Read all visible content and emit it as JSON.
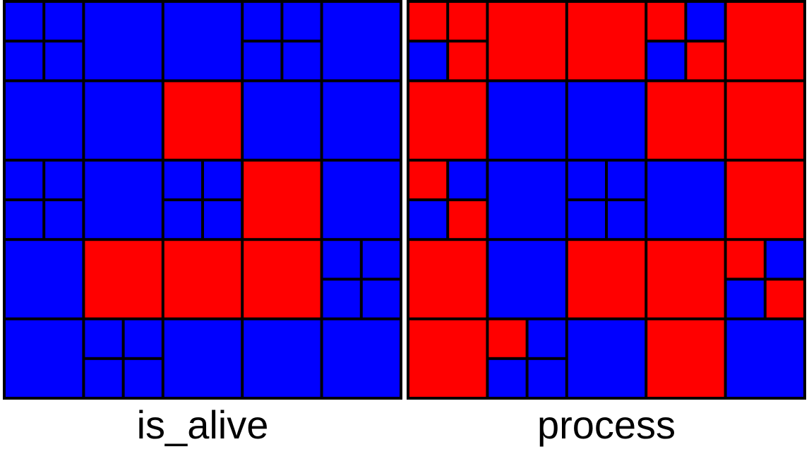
{
  "colors": {
    "red": "#ff0000",
    "blue": "#0000ff",
    "border": "#000000"
  },
  "panels": [
    {
      "label": "is_alive",
      "grid": [
        [
          [
            "B",
            "B",
            "B",
            "B"
          ],
          "B",
          "B",
          [
            "B",
            "B",
            "B",
            "B"
          ],
          "B"
        ],
        [
          "B",
          "B",
          "R",
          "B",
          "B"
        ],
        [
          [
            "B",
            "B",
            "B",
            "B"
          ],
          "B",
          [
            "B",
            "B",
            "B",
            "B"
          ],
          "R",
          "B"
        ],
        [
          "B",
          "R",
          "R",
          "R",
          [
            "B",
            "B",
            "B",
            "B"
          ]
        ],
        [
          "B",
          [
            "B",
            "B",
            "B",
            "B"
          ],
          "B",
          "B",
          "B"
        ]
      ]
    },
    {
      "label": "process",
      "grid": [
        [
          [
            "R",
            "R",
            "B",
            "R"
          ],
          "R",
          "R",
          [
            "R",
            "B",
            "B",
            "R"
          ],
          "R"
        ],
        [
          "R",
          "B",
          "B",
          "R",
          "R"
        ],
        [
          [
            "R",
            "B",
            "B",
            "R"
          ],
          "B",
          [
            "B",
            "B",
            "B",
            "B"
          ],
          "B",
          "R"
        ],
        [
          "R",
          "B",
          "R",
          "R",
          [
            "R",
            "B",
            "B",
            "R"
          ]
        ],
        [
          "R",
          [
            "R",
            "B",
            "B",
            "B"
          ],
          "B",
          "R",
          "B"
        ]
      ]
    }
  ]
}
